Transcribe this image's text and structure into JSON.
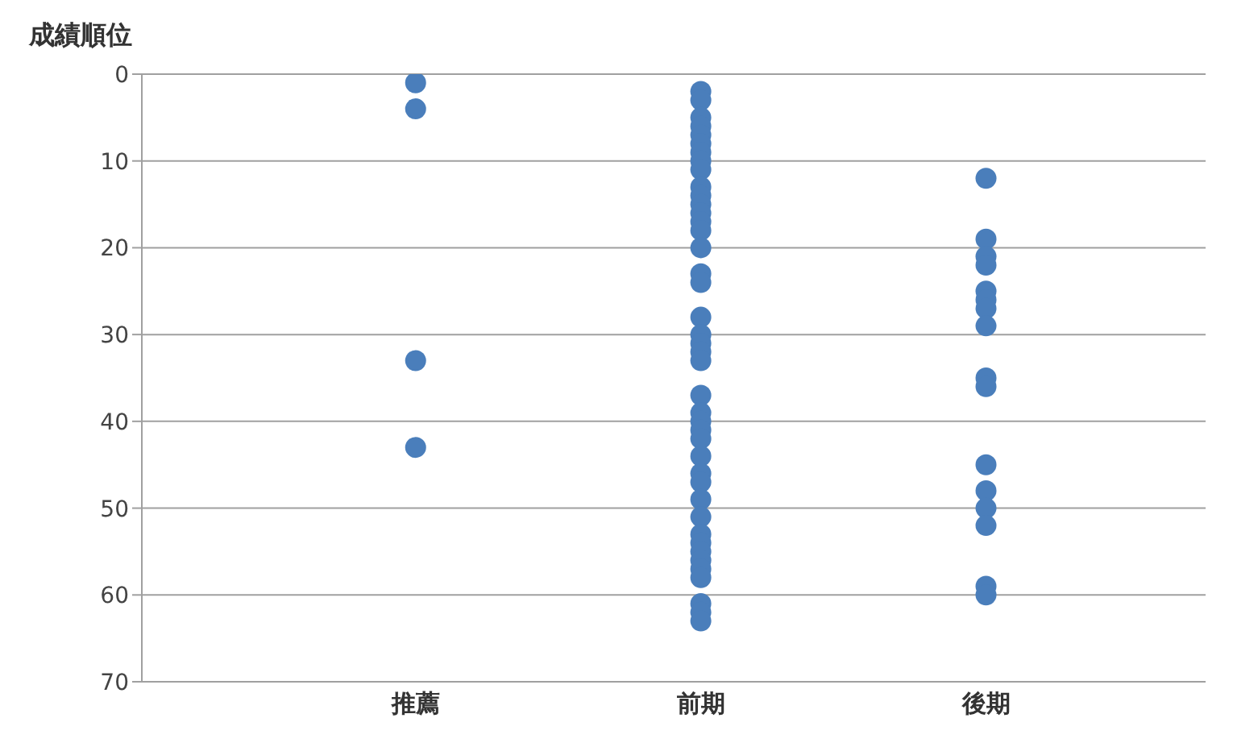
{
  "chart_data": {
    "type": "scatter",
    "ylabel": "成績順位",
    "categories": [
      "推薦",
      "前期",
      "後期"
    ],
    "series": [
      {
        "color": "#4a7ebb",
        "x": [
          "推薦",
          "推薦",
          "推薦",
          "推薦",
          "前期",
          "前期",
          "前期",
          "前期",
          "前期",
          "前期",
          "前期",
          "前期",
          "前期",
          "前期",
          "前期",
          "前期",
          "前期",
          "前期",
          "前期",
          "前期",
          "前期",
          "前期",
          "前期",
          "前期",
          "前期",
          "前期",
          "前期",
          "前期",
          "前期",
          "前期",
          "前期",
          "前期",
          "前期",
          "前期",
          "前期",
          "前期",
          "前期",
          "前期",
          "前期",
          "前期",
          "前期",
          "前期",
          "前期",
          "前期",
          "前期",
          "前期",
          "後期",
          "後期",
          "後期",
          "後期",
          "後期",
          "後期",
          "後期",
          "後期",
          "後期",
          "後期",
          "後期",
          "後期",
          "後期",
          "後期",
          "後期",
          "後期"
        ],
        "values": [
          1,
          4,
          33,
          43,
          2,
          3,
          5,
          6,
          7,
          8,
          9,
          10,
          11,
          13,
          14,
          15,
          16,
          17,
          18,
          20,
          23,
          24,
          28,
          30,
          31,
          32,
          33,
          37,
          39,
          40,
          41,
          42,
          44,
          46,
          47,
          49,
          51,
          53,
          54,
          55,
          56,
          57,
          58,
          61,
          62,
          63,
          12,
          19,
          21,
          22,
          25,
          26,
          27,
          29,
          35,
          36,
          45,
          48,
          50,
          52,
          59,
          60
        ]
      }
    ],
    "ylim": [
      70,
      0
    ],
    "yticks": [
      0,
      10,
      20,
      30,
      40,
      50,
      60,
      70
    ],
    "grid": "y",
    "legend": false,
    "marker": "circle"
  }
}
